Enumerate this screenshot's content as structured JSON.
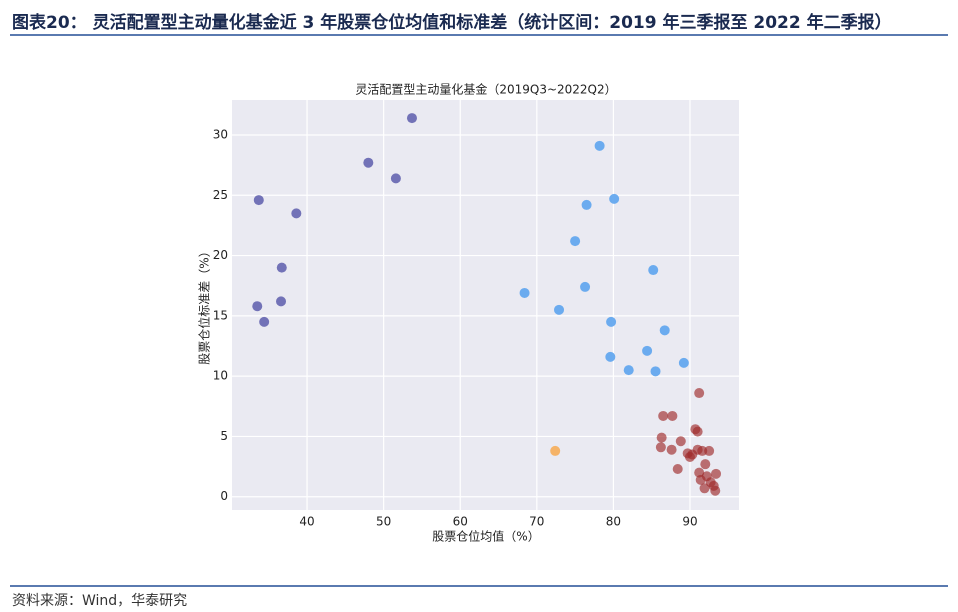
{
  "header": {
    "title": "图表20： 灵活配置型主动量化基金近 3 年股票仓位均值和标准差（统计区间：2019 年三季报至 2022 年二季报）"
  },
  "chart_data": {
    "type": "scatter",
    "title": "灵活配置型主动量化基金（2019Q3~2022Q2）",
    "x_label": "股票仓位均值（%）",
    "y_label": "股票仓位标准差（%）",
    "xlim": [
      30.2,
      96.4
    ],
    "ylim": [
      -1.1,
      32.9
    ],
    "xticks": [
      40,
      50,
      60,
      70,
      80,
      90
    ],
    "yticks": [
      0,
      5,
      10,
      15,
      20,
      25,
      30
    ],
    "grid": true,
    "series": [
      {
        "color": "#6b6bb3",
        "x": [
          33.7,
          38.6,
          48.0,
          51.6,
          53.7,
          36.7,
          36.6,
          33.5,
          34.4
        ],
        "values": [
          24.6,
          23.5,
          27.7,
          26.4,
          31.4,
          19.0,
          16.2,
          15.8,
          14.5
        ]
      },
      {
        "color": "#64a8ee",
        "x": [
          78.2,
          80.1,
          76.5,
          75.0,
          85.2,
          68.4,
          76.3,
          72.9,
          79.7,
          86.7,
          79.6,
          84.4,
          89.2,
          82.0,
          85.5
        ],
        "values": [
          29.1,
          24.7,
          24.2,
          21.2,
          18.8,
          16.9,
          17.4,
          15.5,
          14.5,
          13.8,
          11.6,
          12.1,
          11.1,
          10.5,
          10.4
        ]
      },
      {
        "color": "#f5b060",
        "x": [
          72.4
        ],
        "values": [
          3.8
        ]
      },
      {
        "color": "#9e2a2a",
        "x": [
          91.2,
          86.5,
          87.7,
          90.7,
          91.0,
          86.3,
          88.8,
          86.2,
          87.6,
          89.7,
          90.3,
          91.0,
          91.6,
          92.5,
          90.0,
          88.4,
          92.0,
          91.2,
          93.4,
          92.2,
          91.4,
          92.7,
          93.1,
          91.9,
          93.3
        ],
        "values": [
          8.6,
          6.7,
          6.7,
          5.6,
          5.4,
          4.9,
          4.6,
          4.1,
          3.9,
          3.6,
          3.5,
          3.9,
          3.8,
          3.8,
          3.3,
          2.3,
          2.7,
          2.0,
          1.9,
          1.7,
          1.4,
          1.2,
          0.9,
          0.7,
          0.5
        ]
      }
    ]
  },
  "footer": {
    "source": "资料来源：Wind，华泰研究"
  }
}
